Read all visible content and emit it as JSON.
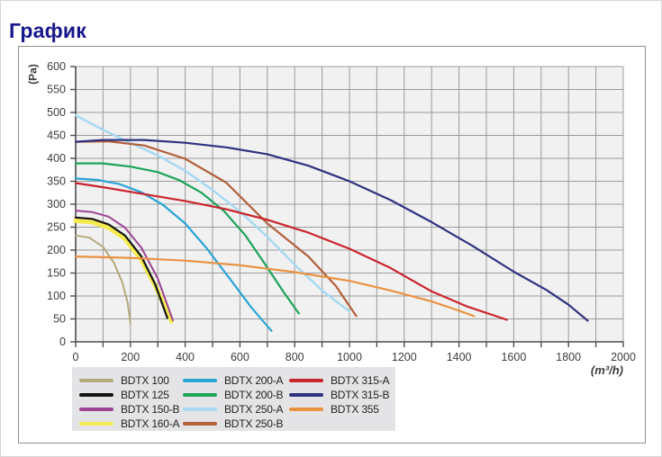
{
  "title": "График",
  "chart_data": {
    "type": "line",
    "title": "График",
    "xlabel": "(m³/h)",
    "ylabel": "(Pa)",
    "xlim": [
      0,
      2000
    ],
    "ylim": [
      0,
      600
    ],
    "x_tick_labels": [
      0,
      200,
      400,
      600,
      800,
      1000,
      1200,
      1400,
      1600,
      1800,
      2000
    ],
    "x_minor_step": 100,
    "y_tick_labels": [
      0,
      50,
      100,
      150,
      200,
      250,
      300,
      350,
      400,
      450,
      500,
      550,
      600
    ],
    "grid": true,
    "legend_position": "bottom",
    "plot_bg": "#f1f1f1",
    "grid_color": "#9b9b9b",
    "axis_color": "#4d4d4d",
    "tick_text_color": "#3d3d3d",
    "draw_order": [
      6,
      0,
      3,
      1,
      2,
      4,
      5,
      7,
      10,
      8,
      9
    ],
    "legend_columns": [
      [
        0,
        1,
        2,
        3
      ],
      [
        4,
        5,
        6,
        7
      ],
      [
        8,
        9,
        10
      ]
    ],
    "series": [
      {
        "name": "BDTX 100",
        "color": "#b3a97b",
        "width": 2,
        "points": [
          [
            0,
            232
          ],
          [
            50,
            227
          ],
          [
            100,
            207
          ],
          [
            140,
            172
          ],
          [
            170,
            130
          ],
          [
            190,
            85
          ],
          [
            200,
            40
          ]
        ]
      },
      {
        "name": "BDTX 125",
        "color": "#141414",
        "width": 2.2,
        "points": [
          [
            0,
            271
          ],
          [
            60,
            268
          ],
          [
            120,
            256
          ],
          [
            180,
            232
          ],
          [
            240,
            186
          ],
          [
            290,
            126
          ],
          [
            335,
            52
          ]
        ]
      },
      {
        "name": "BDTX 150-B",
        "color": "#9d4492",
        "width": 2,
        "points": [
          [
            0,
            286
          ],
          [
            60,
            283
          ],
          [
            120,
            273
          ],
          [
            180,
            249
          ],
          [
            240,
            205
          ],
          [
            300,
            138
          ],
          [
            355,
            47
          ]
        ]
      },
      {
        "name": "BDTX 160-A",
        "color": "#f4eb50",
        "width": 5,
        "points": [
          [
            0,
            264
          ],
          [
            60,
            261
          ],
          [
            120,
            249
          ],
          [
            180,
            225
          ],
          [
            240,
            179
          ],
          [
            295,
            117
          ],
          [
            350,
            45
          ]
        ]
      },
      {
        "name": "BDTX 200-A",
        "color": "#2aa5d6",
        "width": 2.2,
        "points": [
          [
            0,
            356
          ],
          [
            80,
            353
          ],
          [
            160,
            344
          ],
          [
            240,
            326
          ],
          [
            320,
            298
          ],
          [
            400,
            258
          ],
          [
            480,
            203
          ],
          [
            560,
            140
          ],
          [
            640,
            76
          ],
          [
            715,
            24
          ]
        ]
      },
      {
        "name": "BDTX 200-B",
        "color": "#1ea35a",
        "width": 2.2,
        "points": [
          [
            0,
            389
          ],
          [
            100,
            389
          ],
          [
            200,
            382
          ],
          [
            300,
            370
          ],
          [
            380,
            352
          ],
          [
            460,
            325
          ],
          [
            540,
            286
          ],
          [
            620,
            232
          ],
          [
            700,
            162
          ],
          [
            760,
            108
          ],
          [
            815,
            62
          ]
        ]
      },
      {
        "name": "BDTX 250-A",
        "color": "#a7d9f2",
        "width": 2.5,
        "points": [
          [
            0,
            494
          ],
          [
            100,
            462
          ],
          [
            200,
            434
          ],
          [
            300,
            406
          ],
          [
            400,
            373
          ],
          [
            500,
            331
          ],
          [
            600,
            284
          ],
          [
            700,
            229
          ],
          [
            800,
            168
          ],
          [
            900,
            112
          ],
          [
            1000,
            66
          ]
        ]
      },
      {
        "name": "BDTX 250-B",
        "color": "#b2603b",
        "width": 2.2,
        "points": [
          [
            0,
            436
          ],
          [
            120,
            437
          ],
          [
            250,
            428
          ],
          [
            400,
            399
          ],
          [
            550,
            347
          ],
          [
            700,
            258
          ],
          [
            850,
            186
          ],
          [
            950,
            122
          ],
          [
            1025,
            56
          ]
        ]
      },
      {
        "name": "BDTX 315-A",
        "color": "#c9252e",
        "width": 2.2,
        "points": [
          [
            0,
            346
          ],
          [
            100,
            337
          ],
          [
            250,
            322
          ],
          [
            400,
            307
          ],
          [
            550,
            289
          ],
          [
            700,
            266
          ],
          [
            850,
            238
          ],
          [
            1000,
            203
          ],
          [
            1150,
            161
          ],
          [
            1300,
            110
          ],
          [
            1430,
            77
          ],
          [
            1575,
            48
          ]
        ]
      },
      {
        "name": "BDTX 315-B",
        "color": "#2f327f",
        "width": 2.2,
        "points": [
          [
            0,
            436
          ],
          [
            100,
            440
          ],
          [
            250,
            440
          ],
          [
            400,
            434
          ],
          [
            550,
            424
          ],
          [
            700,
            409
          ],
          [
            850,
            384
          ],
          [
            1000,
            350
          ],
          [
            1150,
            309
          ],
          [
            1300,
            261
          ],
          [
            1450,
            209
          ],
          [
            1600,
            153
          ],
          [
            1720,
            113
          ],
          [
            1800,
            81
          ],
          [
            1870,
            46
          ]
        ]
      },
      {
        "name": "BDTX 355",
        "color": "#e99242",
        "width": 2.2,
        "points": [
          [
            0,
            186
          ],
          [
            200,
            183
          ],
          [
            400,
            177
          ],
          [
            600,
            167
          ],
          [
            800,
            152
          ],
          [
            1000,
            133
          ],
          [
            1150,
            112
          ],
          [
            1300,
            88
          ],
          [
            1400,
            68
          ],
          [
            1455,
            56
          ]
        ]
      }
    ]
  }
}
